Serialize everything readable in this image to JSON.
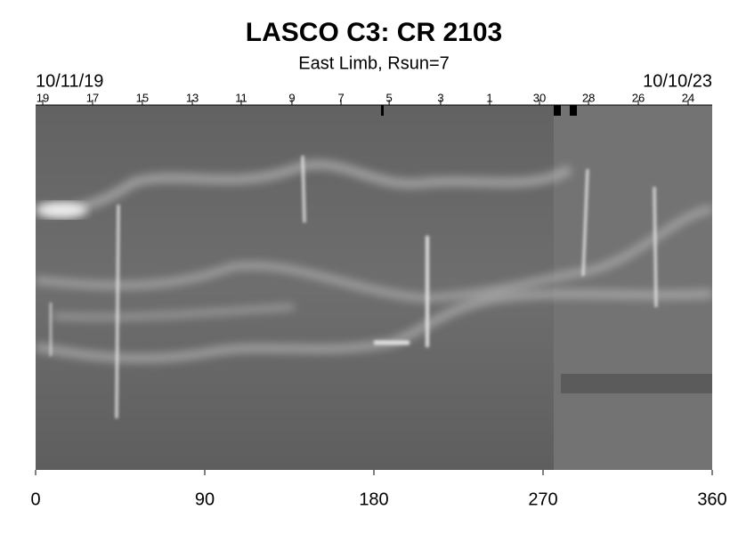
{
  "chart_data": {
    "type": "image",
    "title": "LASCO C3: CR 2103",
    "subtitle": "East Limb, Rsun=7",
    "start_date": "10/11/19",
    "end_date": "10/10/23",
    "xlim": [
      0,
      360
    ],
    "xticks": [
      0,
      90,
      180,
      270,
      360
    ],
    "x2ticks": [
      {
        "value": 3.8,
        "label": "19"
      },
      {
        "value": 30.3,
        "label": "17"
      },
      {
        "value": 56.8,
        "label": "15"
      },
      {
        "value": 83.4,
        "label": "13"
      },
      {
        "value": 109.4,
        "label": "11"
      },
      {
        "value": 136.4,
        "label": "9"
      },
      {
        "value": 162.5,
        "label": "7"
      },
      {
        "value": 188.1,
        "label": "5"
      },
      {
        "value": 215.5,
        "label": "3"
      },
      {
        "value": 241.6,
        "label": "1"
      },
      {
        "value": 268.1,
        "label": "30"
      },
      {
        "value": 294.2,
        "label": "28"
      },
      {
        "value": 320.7,
        "label": "26"
      },
      {
        "value": 347.2,
        "label": "24"
      }
    ]
  }
}
